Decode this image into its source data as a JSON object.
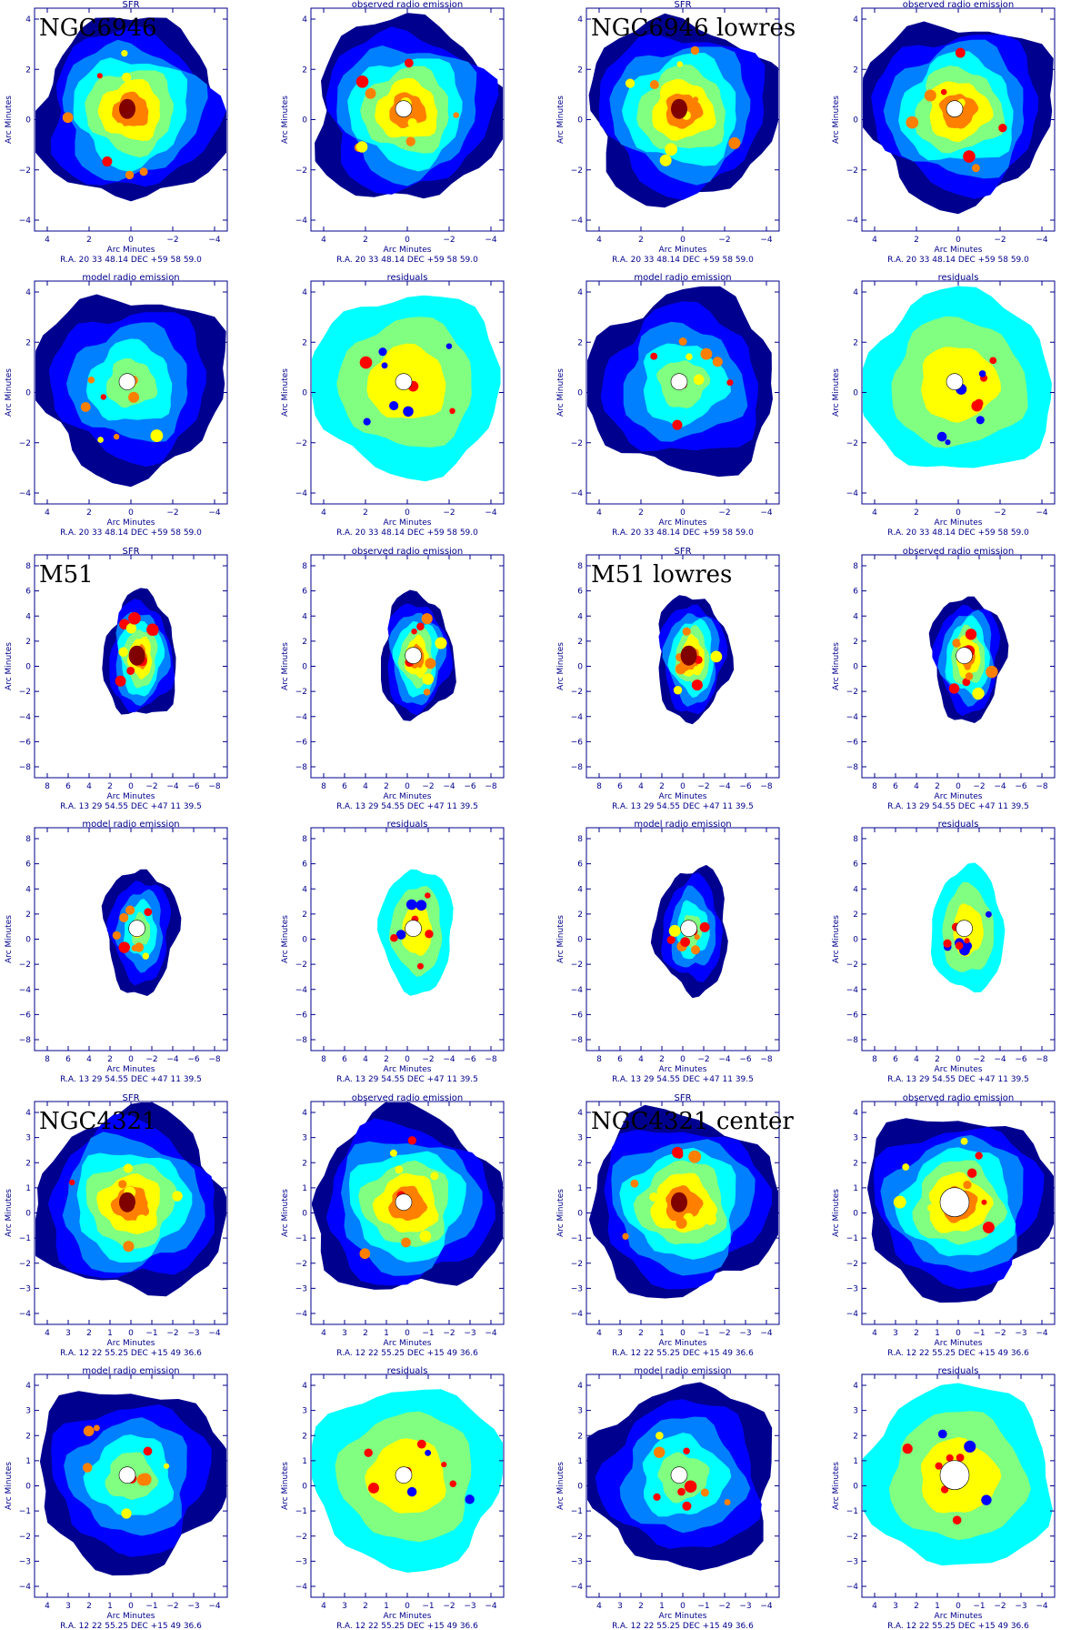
{
  "figure": {
    "xlabel": "Arc Minutes",
    "ylabel": "Arc Minutes",
    "colors": {
      "axis": "#00008b",
      "colormap": [
        "#00008f",
        "#0000ff",
        "#0080ff",
        "#00ffff",
        "#80ff80",
        "#ffff00",
        "#ff8000",
        "#ff0000",
        "#800000"
      ]
    }
  },
  "blocks": [
    {
      "left_label": "NGC6946",
      "right_label": "NGC6946 lowres",
      "coord": "R.A. 20 33 48.14     DEC  +59 58 59.0",
      "xticks": [
        "4",
        "2",
        "0",
        "−2",
        "−4"
      ],
      "yticks": [
        "4",
        "2",
        "0",
        "−2",
        "−4"
      ],
      "titles_top": [
        "SFR",
        "observed radio emission",
        "SFR",
        "observed radio emission"
      ],
      "titles_bottom": [
        "model radio emission",
        "residuals",
        "model radio emission",
        "residuals"
      ]
    },
    {
      "left_label": "M51",
      "right_label": "M51 lowres",
      "coord": "R.A. 13 29 54.55     DEC  +47 11 39.5",
      "xticks": [
        "8",
        "6",
        "4",
        "2",
        "0",
        "−2",
        "−4",
        "−6",
        "−8"
      ],
      "yticks": [
        "8",
        "6",
        "4",
        "2",
        "0",
        "−2",
        "−4",
        "−6",
        "−8"
      ],
      "titles_top": [
        "SFR",
        "observed radio emission",
        "SFR",
        "observed radio emission"
      ],
      "titles_bottom": [
        "model radio emission",
        "residuals",
        "model radio emission",
        "residuals"
      ]
    },
    {
      "left_label": "NGC4321",
      "right_label": "NGC4321 center",
      "coord": "R.A. 12 22 55.25     DEC  +15 49 36.6",
      "xticks": [
        "4",
        "3",
        "2",
        "1",
        "0",
        "−1",
        "−2",
        "−3",
        "−4"
      ],
      "yticks": [
        "4",
        "3",
        "2",
        "1",
        "0",
        "−1",
        "−2",
        "−3",
        "−4"
      ],
      "titles_top": [
        "SFR",
        "observed radio emission",
        "SFR",
        "observed radio emission"
      ],
      "titles_bottom": [
        "model radio emission",
        "residuals",
        "model radio emission",
        "residuals"
      ]
    }
  ]
}
